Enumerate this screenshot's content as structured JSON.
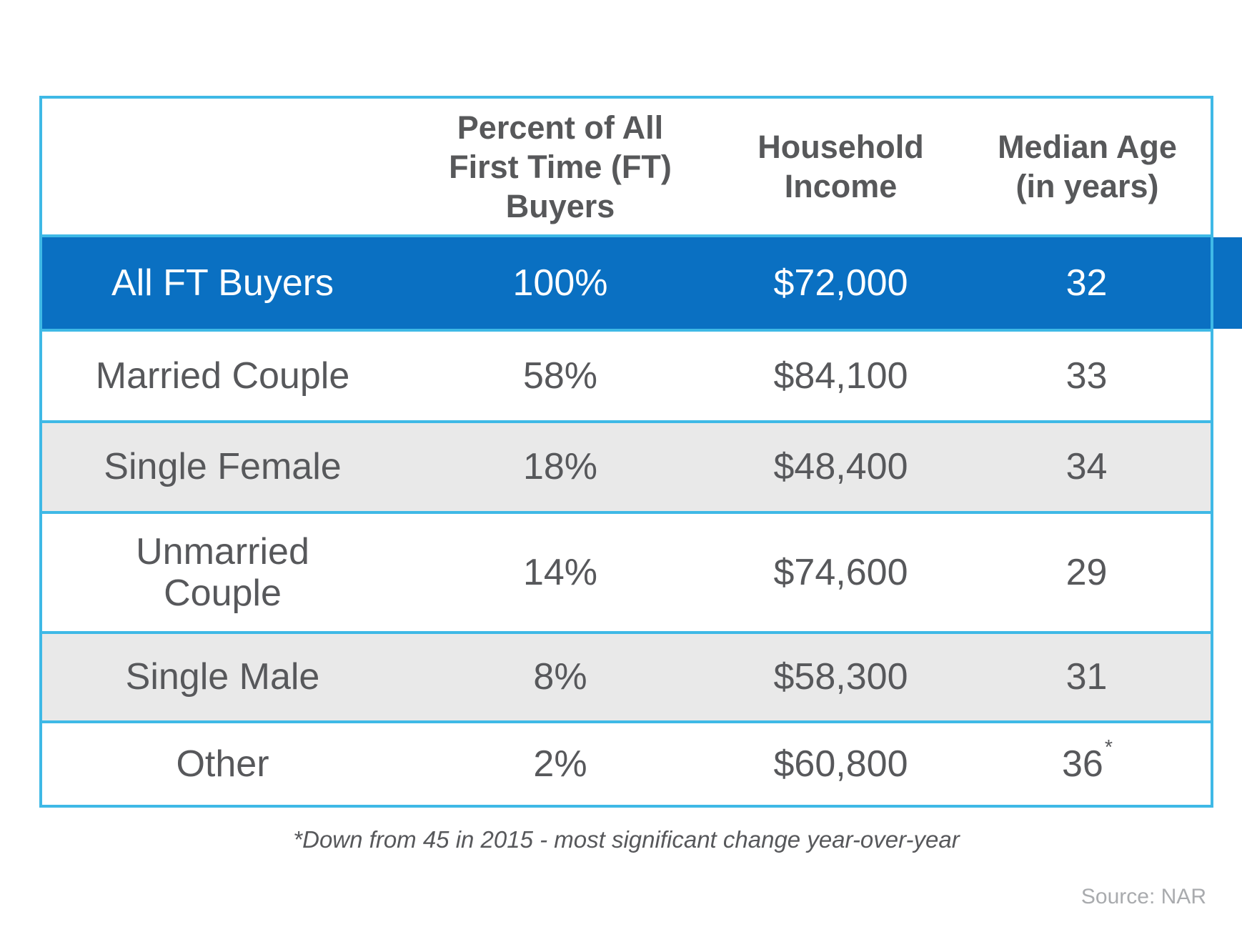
{
  "table": {
    "headers": {
      "category": "",
      "percent": "Percent of All\nFirst Time (FT)\nBuyers",
      "income": "Household\nIncome",
      "age": "Median Age\n(in years)"
    },
    "rows": [
      {
        "label": "All FT Buyers",
        "percent": "100%",
        "income": "$72,000",
        "age": "32"
      },
      {
        "label": "Married Couple",
        "percent": "58%",
        "income": "$84,100",
        "age": "33"
      },
      {
        "label": "Single Female",
        "percent": "18%",
        "income": "$48,400",
        "age": "34"
      },
      {
        "label": "Unmarried\nCouple",
        "percent": "14%",
        "income": "$74,600",
        "age": "29"
      },
      {
        "label": "Single Male",
        "percent": "8%",
        "income": "$58,300",
        "age": "31"
      },
      {
        "label": "Other",
        "percent": "2%",
        "income": "$60,800",
        "age": "36",
        "age_note": "*"
      }
    ]
  },
  "footnote": "*Down from 45 in 2015 - most significant change year-over-year",
  "source": "Source: NAR",
  "colors": {
    "highlight_row_blue": "#0a70c2",
    "border_cyan": "#3fb9e6",
    "alt_row_gray": "#e9e9e9",
    "text_gray": "#57585b",
    "source_gray": "#a9abae"
  },
  "chart_data": {
    "type": "table",
    "title": "",
    "columns": [
      "",
      "Percent of All First Time (FT) Buyers",
      "Household Income",
      "Median Age (in years)"
    ],
    "rows": [
      [
        "All FT Buyers",
        "100%",
        "$72,000",
        "32"
      ],
      [
        "Married Couple",
        "58%",
        "$84,100",
        "33"
      ],
      [
        "Single Female",
        "18%",
        "$48,400",
        "34"
      ],
      [
        "Unmarried Couple",
        "14%",
        "$74,600",
        "29"
      ],
      [
        "Single Male",
        "8%",
        "$58,300",
        "31"
      ],
      [
        "Other",
        "2%",
        "$60,800",
        "36*"
      ]
    ],
    "highlighted_row": "All FT Buyers",
    "footnote": "*Down from 45 in 2015 - most significant change year-over-year",
    "source": "Source: NAR",
    "layout_hints": {
      "grid": "horizontal separators only",
      "header_position": "top"
    }
  }
}
